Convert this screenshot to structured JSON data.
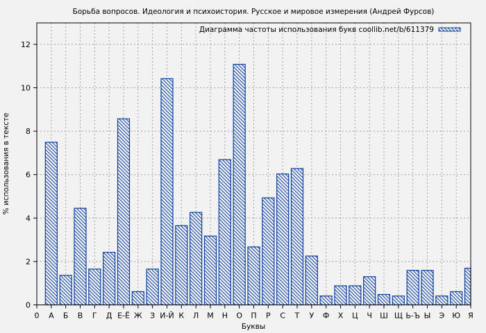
{
  "chart_data": {
    "type": "bar",
    "title": "Борьба вопросов. Идеология и психоистория. Русское и мировое измерения (Андрей Фурсов)",
    "xlabel": "Буквы",
    "ylabel": "% использования в тексте",
    "legend": "Диаграмма частоты использования букв coollib.net/b/611379",
    "legend_position": "top-right",
    "grid": true,
    "ylim": [
      0,
      13
    ],
    "yticks": [
      0,
      2,
      4,
      6,
      8,
      10,
      12
    ],
    "x_first_tick": "0",
    "categories": [
      "А",
      "Б",
      "В",
      "Г",
      "Д",
      "Е-Ё",
      "Ж",
      "З",
      "И-Й",
      "К",
      "Л",
      "М",
      "Н",
      "О",
      "П",
      "Р",
      "С",
      "Т",
      "У",
      "Ф",
      "Х",
      "Ц",
      "Ч",
      "Ш",
      "Щ",
      "Ь-Ъ",
      "Ы",
      "Э",
      "Ю",
      "Я"
    ],
    "values": [
      7.49,
      1.36,
      4.45,
      1.65,
      2.42,
      8.57,
      0.61,
      1.65,
      10.42,
      3.65,
      4.26,
      3.17,
      6.69,
      11.08,
      2.67,
      4.93,
      6.03,
      6.28,
      2.25,
      0.41,
      0.88,
      0.88,
      1.3,
      0.48,
      0.41,
      1.59,
      1.59,
      0.41,
      0.61,
      1.69
    ],
    "colors": {
      "bar_stroke": "#0b3fa0",
      "background": "#f2f2f2",
      "grid": "#a0a0a0",
      "axis": "#000000"
    }
  }
}
